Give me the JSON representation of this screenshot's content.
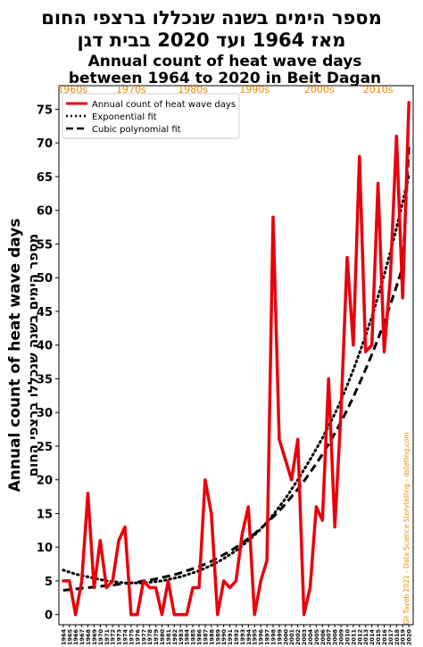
{
  "chart_data": {
    "type": "line",
    "title_he_line1": "מספר הימים בשנה שנכללו ברצפי החום",
    "title_he_line2": "מאז 1964 ועד 2020 בבית דגן",
    "title_en_line1": "Annual count of heat wave days",
    "title_en_line2": "between 1964 to 2020 in Beit Dagan",
    "ylabel_en": "Annual count of heat wave days",
    "ylabel_he": "מספר הימים בשנה שנכללו ברצפי החום",
    "credit": "Gil Tayeb 2021 - Data Science Storytelling - dstelling.com",
    "decade_labels": [
      {
        "label": "1960s",
        "year": 1965.5
      },
      {
        "label": "1970s",
        "year": 1975
      },
      {
        "label": "1980s",
        "year": 1985
      },
      {
        "label": "1990s",
        "year": 1995
      },
      {
        "label": "2000s",
        "year": 2005.5
      },
      {
        "label": "2010s",
        "year": 2015
      }
    ],
    "legend": {
      "placement": "top-left",
      "entries": [
        "Annual count of heat wave days",
        "Exponential fit",
        "Cubic polynomial fit"
      ]
    },
    "xlim": [
      1964,
      2020
    ],
    "ylim": [
      0,
      78
    ],
    "yticks": [
      0,
      5,
      10,
      15,
      20,
      25,
      30,
      35,
      40,
      45,
      50,
      55,
      60,
      65,
      70,
      75
    ],
    "x": [
      1964,
      1965,
      1966,
      1967,
      1968,
      1969,
      1970,
      1971,
      1972,
      1973,
      1974,
      1975,
      1976,
      1977,
      1978,
      1979,
      1980,
      1981,
      1982,
      1983,
      1984,
      1985,
      1986,
      1987,
      1988,
      1989,
      1990,
      1991,
      1992,
      1993,
      1994,
      1995,
      1996,
      1997,
      1998,
      1999,
      2000,
      2001,
      2002,
      2003,
      2004,
      2005,
      2006,
      2007,
      2008,
      2009,
      2010,
      2011,
      2012,
      2013,
      2014,
      2015,
      2016,
      2017,
      2018,
      2019,
      2020
    ],
    "series": [
      {
        "name": "Annual count of heat wave days",
        "color": "#e8000b",
        "values": [
          5,
          5,
          0,
          5,
          18,
          4,
          11,
          4,
          5,
          11,
          13,
          0,
          0,
          5,
          4,
          4,
          0,
          5,
          0,
          0,
          0,
          4,
          4,
          20,
          15,
          0,
          5,
          4,
          5,
          12,
          16,
          0,
          5,
          8,
          59,
          26,
          23,
          20,
          26,
          0,
          4,
          16,
          14,
          35,
          13,
          30,
          53,
          40,
          68,
          39,
          40,
          64,
          39,
          50,
          71,
          47,
          76
        ]
      },
      {
        "name": "Exponential fit",
        "color": "#000000",
        "style": "dotted",
        "values": [
          6.6,
          6.3,
          6.0,
          5.8,
          5.6,
          5.4,
          5.2,
          5.0,
          4.9,
          4.8,
          4.7,
          4.7,
          4.7,
          4.7,
          4.8,
          4.9,
          5.0,
          5.2,
          5.4,
          5.6,
          5.9,
          6.2,
          6.5,
          6.9,
          7.3,
          7.8,
          8.3,
          8.9,
          9.5,
          10.2,
          11.0,
          11.8,
          12.7,
          13.7,
          14.8,
          16.0,
          17.2,
          18.6,
          20.0,
          21.5,
          23.0,
          24.6,
          26.2,
          28.0,
          29.8,
          31.8,
          34.0,
          36.3,
          38.8,
          41.4,
          44.2,
          47.2,
          50.4,
          53.8,
          57.4,
          61.2,
          65.2
        ]
      },
      {
        "name": "Cubic polynomial fit",
        "color": "#000000",
        "style": "dashed",
        "values": [
          3.6,
          3.7,
          3.8,
          3.9,
          4.0,
          4.1,
          4.2,
          4.3,
          4.4,
          4.5,
          4.6,
          4.7,
          4.8,
          5.0,
          5.1,
          5.3,
          5.5,
          5.7,
          5.9,
          6.2,
          6.5,
          6.8,
          7.1,
          7.5,
          7.9,
          8.4,
          8.9,
          9.4,
          10.0,
          10.6,
          11.3,
          12.0,
          12.8,
          13.6,
          14.5,
          15.4,
          16.4,
          17.5,
          18.6,
          19.8,
          21.1,
          22.4,
          23.8,
          25.3,
          26.9,
          28.6,
          30.4,
          32.3,
          34.3,
          36.4,
          38.6,
          40.9,
          43.4,
          46.0,
          48.7,
          51.6,
          69.5
        ]
      }
    ]
  }
}
